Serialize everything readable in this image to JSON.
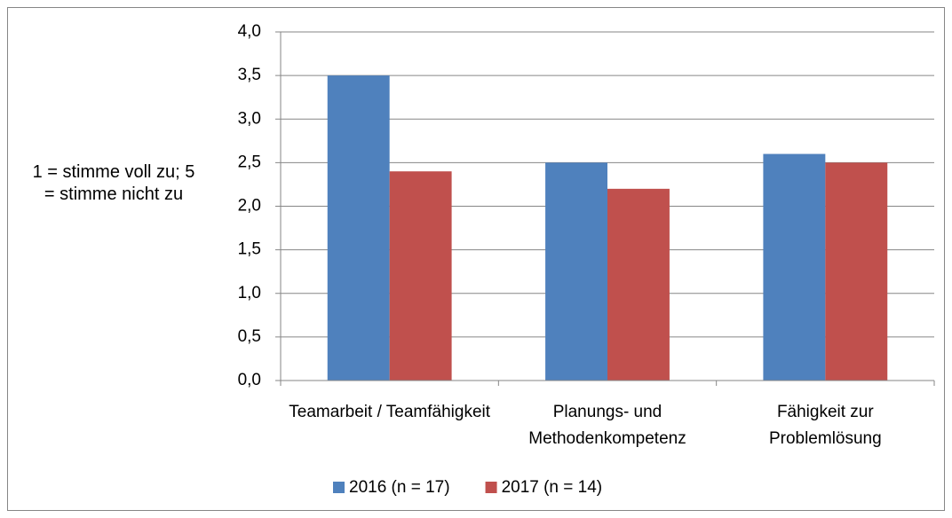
{
  "chart_data": {
    "type": "bar",
    "y_label": "1 = stimme voll zu; 5 = stimme nicht zu",
    "categories": [
      "Teamarbeit / Teamfähigkeit",
      "Planungs- und Methodenkompetenz",
      "Fähigkeit zur Problemlösung"
    ],
    "series": [
      {
        "name": "2016 (n = 17)",
        "color": "#4f81bd",
        "values": [
          3.5,
          2.5,
          2.6
        ]
      },
      {
        "name": "2017 (n = 14)",
        "color": "#c0504d",
        "values": [
          2.4,
          2.2,
          2.5
        ]
      }
    ],
    "ylim": [
      0,
      4
    ],
    "yticks": [
      {
        "value": 0,
        "label": "0,0"
      },
      {
        "value": 0.5,
        "label": "0,5"
      },
      {
        "value": 1,
        "label": "1,0"
      },
      {
        "value": 1.5,
        "label": "1,5"
      },
      {
        "value": 2,
        "label": "2,0"
      },
      {
        "value": 2.5,
        "label": "2,5"
      },
      {
        "value": 3,
        "label": "3,0"
      },
      {
        "value": 3.5,
        "label": "3,5"
      },
      {
        "value": 4,
        "label": "4,0"
      }
    ],
    "grid": true,
    "legend": "bottom"
  }
}
